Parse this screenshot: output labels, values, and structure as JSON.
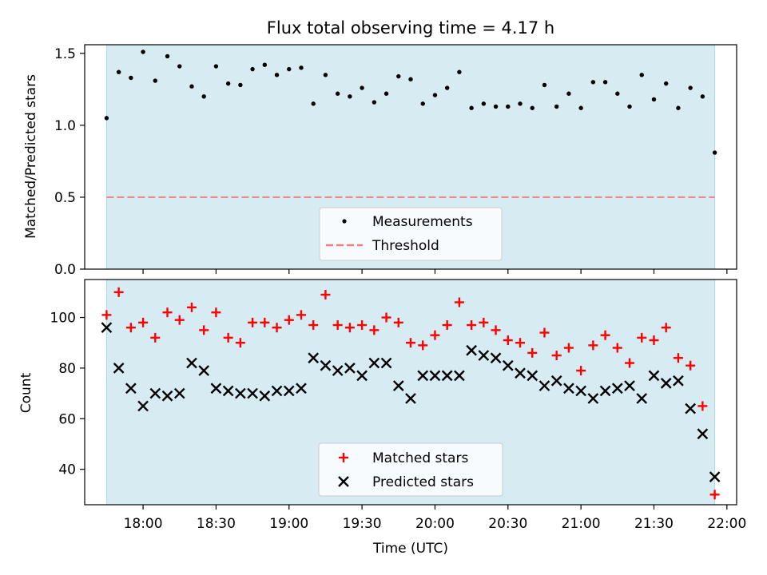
{
  "chart_data": [
    {
      "type": "scatter",
      "title": "Flux total observing time = 4.17 h",
      "xlabel": "",
      "ylabel": "Matched/Predicted stars",
      "ylim": [
        0,
        1.56
      ],
      "yticks": [
        0.0,
        0.5,
        1.0,
        1.5
      ],
      "ytick_labels": [
        "0.0",
        "0.5",
        "1.0",
        "1.5"
      ],
      "xlim": [
        "17:36",
        "22:04"
      ],
      "shaded_span": [
        "17:45",
        "21:55"
      ],
      "shade_color": "#add8e6",
      "x": [
        "17:45",
        "17:50",
        "17:55",
        "18:00",
        "18:05",
        "18:10",
        "18:15",
        "18:20",
        "18:25",
        "18:30",
        "18:35",
        "18:40",
        "18:45",
        "18:50",
        "18:55",
        "19:00",
        "19:05",
        "19:10",
        "19:15",
        "19:20",
        "19:25",
        "19:30",
        "19:35",
        "19:40",
        "19:45",
        "19:50",
        "19:55",
        "20:00",
        "20:05",
        "20:10",
        "20:15",
        "20:20",
        "20:25",
        "20:30",
        "20:35",
        "20:40",
        "20:45",
        "20:50",
        "20:55",
        "21:00",
        "21:05",
        "21:10",
        "21:15",
        "21:20",
        "21:25",
        "21:30",
        "21:35",
        "21:40",
        "21:45",
        "21:50",
        "21:55"
      ],
      "series": [
        {
          "name": "Measurements",
          "marker": "dot",
          "color": "#000000",
          "values": [
            1.05,
            1.37,
            1.33,
            1.51,
            1.31,
            1.48,
            1.41,
            1.27,
            1.2,
            1.41,
            1.29,
            1.28,
            1.39,
            1.42,
            1.35,
            1.39,
            1.4,
            1.15,
            1.35,
            1.22,
            1.2,
            1.26,
            1.16,
            1.22,
            1.34,
            1.32,
            1.15,
            1.21,
            1.26,
            1.37,
            1.12,
            1.15,
            1.13,
            1.13,
            1.15,
            1.12,
            1.28,
            1.13,
            1.22,
            1.12,
            1.3,
            1.3,
            1.22,
            1.13,
            1.35,
            1.18,
            1.29,
            1.12,
            1.26,
            1.2,
            0.81
          ]
        },
        {
          "name": "Threshold",
          "marker": "dashed-line",
          "color": "#f08080",
          "values": [
            0.5,
            0.5
          ]
        }
      ],
      "legend": "lower-center"
    },
    {
      "type": "scatter",
      "title": "",
      "xlabel": "Time (UTC)",
      "ylabel": "Count",
      "ylim": [
        26,
        115
      ],
      "yticks": [
        40,
        60,
        80,
        100
      ],
      "ytick_labels": [
        "40",
        "60",
        "80",
        "100"
      ],
      "xlim": [
        "17:36",
        "22:04"
      ],
      "xticks": [
        "18:00",
        "18:30",
        "19:00",
        "19:30",
        "20:00",
        "20:30",
        "21:00",
        "21:30",
        "22:00"
      ],
      "shaded_span": [
        "17:45",
        "21:55"
      ],
      "shade_color": "#add8e6",
      "x": [
        "17:45",
        "17:50",
        "17:55",
        "18:00",
        "18:05",
        "18:10",
        "18:15",
        "18:20",
        "18:25",
        "18:30",
        "18:35",
        "18:40",
        "18:45",
        "18:50",
        "18:55",
        "19:00",
        "19:05",
        "19:10",
        "19:15",
        "19:20",
        "19:25",
        "19:30",
        "19:35",
        "19:40",
        "19:45",
        "19:50",
        "19:55",
        "20:00",
        "20:05",
        "20:10",
        "20:15",
        "20:20",
        "20:25",
        "20:30",
        "20:35",
        "20:40",
        "20:45",
        "20:50",
        "20:55",
        "21:00",
        "21:05",
        "21:10",
        "21:15",
        "21:20",
        "21:25",
        "21:30",
        "21:35",
        "21:40",
        "21:45",
        "21:50",
        "21:55"
      ],
      "series": [
        {
          "name": "Matched stars",
          "marker": "plus",
          "color": "#ff0000",
          "values": [
            101,
            110,
            96,
            98,
            92,
            102,
            99,
            104,
            95,
            102,
            92,
            90,
            98,
            98,
            96,
            99,
            101,
            97,
            109,
            97,
            96,
            97,
            95,
            100,
            98,
            90,
            89,
            93,
            97,
            106,
            97,
            98,
            95,
            91,
            90,
            86,
            94,
            85,
            88,
            79,
            89,
            93,
            88,
            82,
            92,
            91,
            96,
            84,
            81,
            65,
            30
          ]
        },
        {
          "name": "Predicted stars",
          "marker": "x",
          "color": "#000000",
          "values": [
            96,
            80,
            72,
            65,
            70,
            69,
            70,
            82,
            79,
            72,
            71,
            70,
            70,
            69,
            71,
            71,
            72,
            84,
            81,
            79,
            80,
            77,
            82,
            82,
            73,
            68,
            77,
            77,
            77,
            77,
            87,
            85,
            84,
            81,
            78,
            77,
            73,
            75,
            72,
            71,
            68,
            71,
            72,
            73,
            68,
            77,
            74,
            75,
            64,
            54,
            37
          ]
        }
      ],
      "legend": "lower-center"
    }
  ]
}
